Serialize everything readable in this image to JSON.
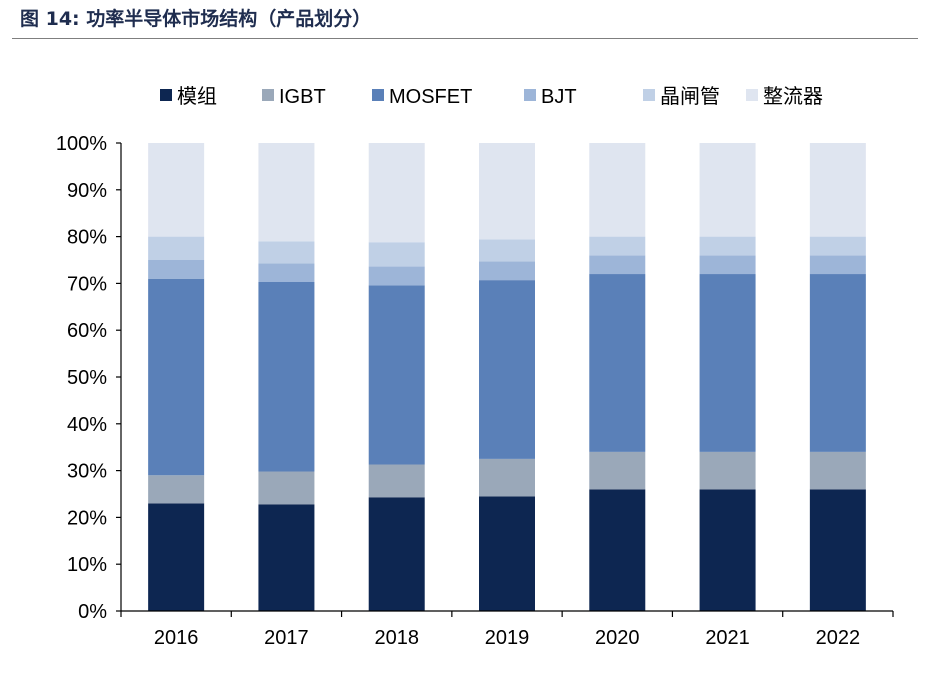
{
  "figure": {
    "title": "图 14:  功率半导体市场结构（产品划分）"
  },
  "chart_data": {
    "type": "bar",
    "stacked": true,
    "categories": [
      "2016",
      "2017",
      "2018",
      "2019",
      "2020",
      "2021",
      "2022"
    ],
    "series": [
      {
        "name": "模组",
        "color": "#0d2651",
        "values": [
          23,
          22.8,
          24.3,
          24.5,
          26,
          26,
          26
        ]
      },
      {
        "name": "IGBT",
        "color": "#9aa8b9",
        "values": [
          6,
          7,
          7,
          8,
          8,
          8,
          8
        ]
      },
      {
        "name": "MOSFET",
        "color": "#5a80b8",
        "values": [
          42,
          40.5,
          38.3,
          38.2,
          38,
          38,
          38
        ]
      },
      {
        "name": "BJT",
        "color": "#9db5d8",
        "values": [
          4,
          4,
          4,
          4,
          4,
          4,
          4
        ]
      },
      {
        "name": "晶闸管",
        "color": "#c0d0e6",
        "values": [
          5,
          4.7,
          5.2,
          4.7,
          4,
          4,
          4
        ]
      },
      {
        "name": "整流器",
        "color": "#dfe5f0",
        "values": [
          20,
          21,
          21.2,
          20.6,
          20,
          20,
          20
        ]
      }
    ],
    "yticks": [
      "0%",
      "10%",
      "20%",
      "30%",
      "40%",
      "50%",
      "60%",
      "70%",
      "80%",
      "90%",
      "100%"
    ],
    "ylim": [
      0,
      100
    ],
    "legend_position": "top",
    "grid": false
  }
}
